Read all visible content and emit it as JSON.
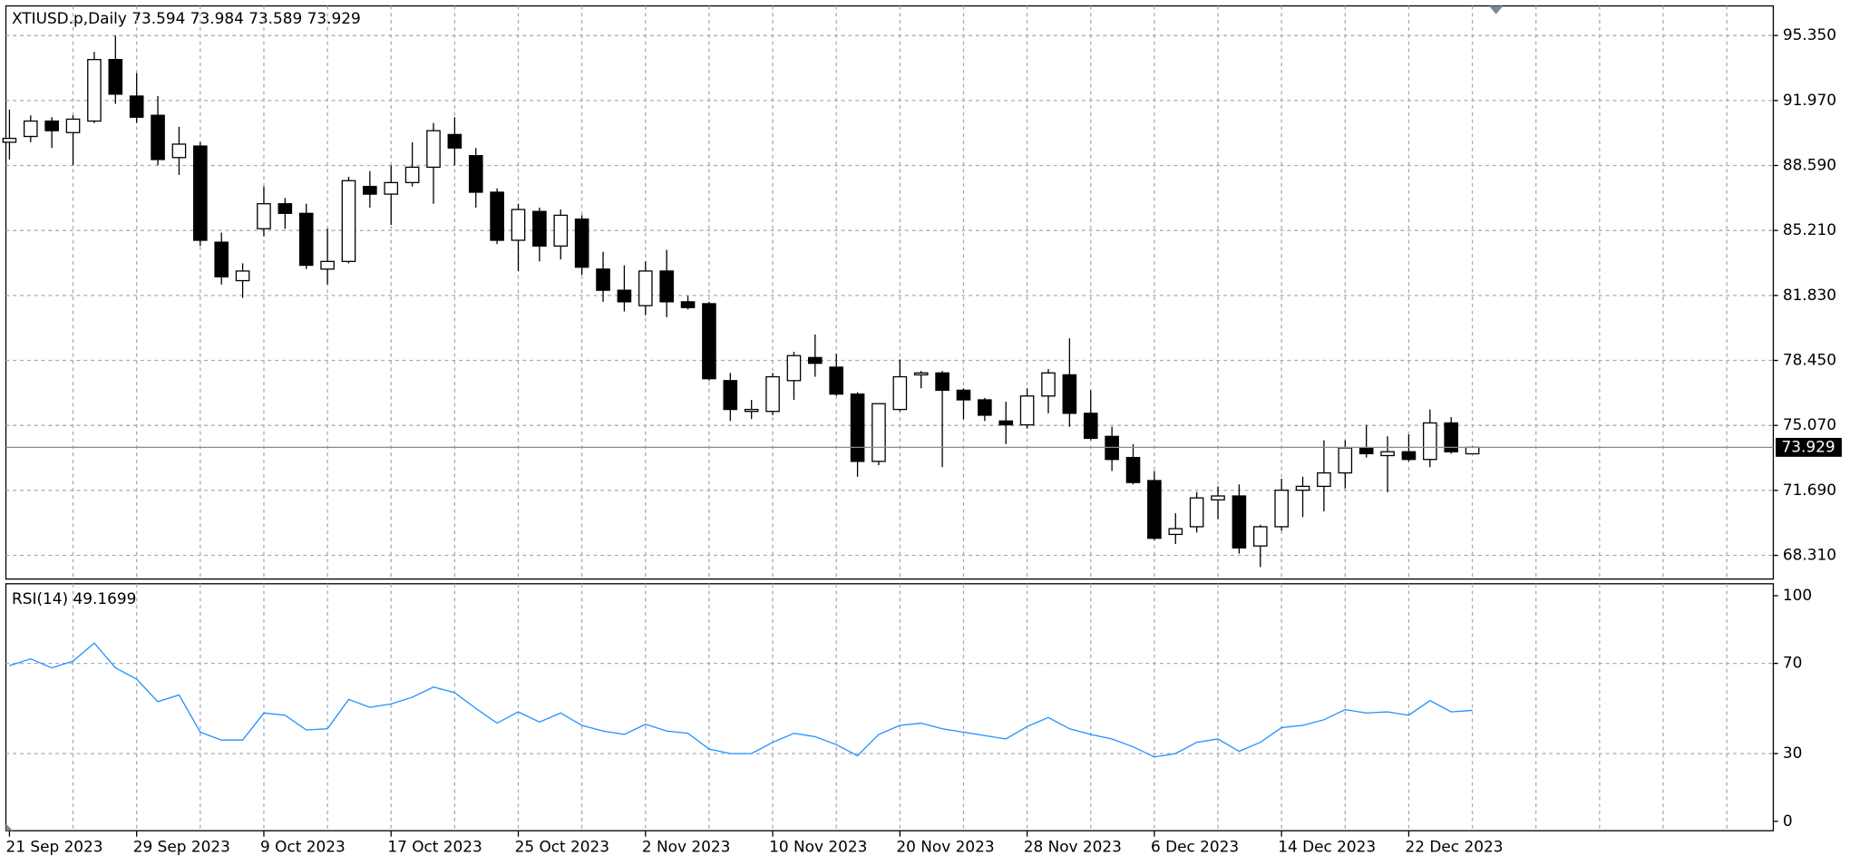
{
  "chart_data": [
    {
      "type": "candlestick",
      "title": "XTIUSD.p,Daily  73.594 73.984 73.589 73.929",
      "categories": [
        "21 Sep 2023",
        null,
        null,
        null,
        null,
        null,
        "29 Sep 2023",
        null,
        null,
        null,
        null,
        null,
        "9 Oct 2023",
        null,
        null,
        null,
        null,
        null,
        "17 Oct 2023",
        null,
        null,
        null,
        null,
        null,
        "25 Oct 2023",
        null,
        null,
        null,
        null,
        null,
        "2 Nov 2023",
        null,
        null,
        null,
        null,
        null,
        "10 Nov 2023",
        null,
        null,
        null,
        null,
        null,
        "20 Nov 2023",
        null,
        null,
        null,
        null,
        null,
        "28 Nov 2023",
        null,
        null,
        null,
        null,
        null,
        "6 Dec 2023",
        null,
        null,
        null,
        null,
        null,
        "14 Dec 2023",
        null,
        null,
        null,
        null,
        null,
        "22 Dec 2023",
        null,
        null,
        null
      ],
      "open": [
        89.8,
        90.1,
        90.9,
        90.3,
        90.9,
        94.1,
        92.2,
        91.2,
        89.0,
        89.6,
        84.6,
        82.6,
        85.3,
        86.6,
        86.1,
        83.2,
        83.6,
        87.5,
        87.1,
        87.7,
        88.5,
        90.2,
        89.1,
        87.2,
        84.7,
        86.2,
        84.4,
        85.8,
        83.2,
        82.1,
        81.3,
        83.1,
        81.5,
        81.4,
        77.4,
        75.8,
        75.8,
        77.4,
        78.6,
        78.1,
        76.7,
        73.2,
        75.9,
        77.7,
        77.8,
        76.9,
        76.4,
        75.3,
        75.1,
        76.6,
        77.7,
        75.7,
        74.5,
        73.4,
        72.2,
        69.4,
        69.8,
        71.2,
        71.4,
        68.8,
        69.8,
        71.7,
        71.9,
        72.6,
        73.9,
        73.5,
        73.7,
        73.3,
        75.2,
        73.594
      ],
      "high": [
        91.5,
        91.2,
        91.1,
        91.2,
        94.5,
        95.35,
        93.4,
        92.2,
        90.6,
        89.8,
        85.1,
        83.5,
        87.5,
        86.9,
        86.6,
        85.3,
        88.0,
        88.3,
        88.6,
        89.8,
        90.8,
        91.1,
        89.5,
        87.4,
        86.6,
        86.4,
        86.3,
        86.0,
        84.1,
        83.4,
        83.6,
        84.2,
        81.8,
        81.5,
        77.8,
        76.4,
        77.8,
        78.9,
        79.8,
        78.8,
        76.8,
        76.2,
        78.5,
        77.9,
        77.9,
        77.0,
        76.5,
        76.3,
        77.0,
        78.0,
        79.6,
        76.9,
        75.0,
        74.1,
        72.7,
        70.5,
        71.6,
        71.9,
        72.0,
        69.9,
        72.3,
        72.4,
        74.3,
        74.3,
        75.1,
        74.5,
        74.6,
        75.9,
        75.5,
        73.984
      ],
      "low": [
        88.9,
        89.8,
        89.5,
        88.6,
        90.8,
        91.8,
        90.8,
        88.6,
        88.1,
        84.4,
        82.4,
        81.7,
        84.9,
        85.3,
        83.2,
        82.4,
        83.5,
        86.4,
        85.5,
        87.5,
        86.6,
        88.6,
        86.4,
        84.5,
        83.1,
        83.6,
        83.7,
        82.9,
        81.5,
        81.0,
        80.8,
        80.7,
        81.1,
        77.4,
        75.3,
        75.4,
        75.6,
        76.4,
        77.6,
        76.6,
        72.4,
        73.0,
        75.8,
        77.0,
        72.9,
        75.4,
        75.3,
        74.1,
        74.9,
        75.7,
        75.0,
        74.3,
        72.7,
        72.0,
        69.1,
        68.9,
        69.5,
        70.2,
        68.4,
        67.7,
        69.6,
        70.3,
        70.6,
        71.8,
        73.4,
        71.6,
        73.2,
        72.9,
        73.6,
        73.589
      ],
      "close": [
        90.0,
        90.9,
        90.4,
        91.0,
        94.1,
        92.3,
        91.1,
        88.9,
        89.7,
        84.7,
        82.8,
        83.1,
        86.6,
        86.1,
        83.4,
        83.6,
        87.8,
        87.1,
        87.7,
        88.5,
        90.4,
        89.5,
        87.2,
        84.7,
        86.3,
        84.4,
        86.0,
        83.3,
        82.1,
        81.5,
        83.1,
        81.5,
        81.2,
        77.5,
        75.9,
        75.9,
        77.6,
        78.7,
        78.3,
        76.7,
        73.2,
        76.2,
        77.6,
        77.8,
        76.9,
        76.4,
        75.6,
        75.1,
        76.6,
        77.8,
        75.7,
        74.4,
        73.3,
        72.1,
        69.2,
        69.7,
        71.3,
        71.4,
        68.7,
        69.8,
        71.7,
        71.9,
        72.6,
        73.9,
        73.6,
        73.7,
        73.3,
        75.2,
        73.7,
        73.929
      ],
      "up_color": "#ffffff",
      "down_color": "#000000",
      "wick_color": "#000000",
      "ylim": [
        67.08,
        96.89
      ],
      "yticks": [
        {
          "value": 95.35,
          "label": "95.350"
        },
        {
          "value": 91.97,
          "label": "91.970"
        },
        {
          "value": 88.59,
          "label": "88.590"
        },
        {
          "value": 85.21,
          "label": "85.210"
        },
        {
          "value": 81.83,
          "label": "81.830"
        },
        {
          "value": 78.45,
          "label": "78.450"
        },
        {
          "value": 75.07,
          "label": "75.070"
        },
        {
          "value": 71.69,
          "label": "71.690"
        },
        {
          "value": 68.31,
          "label": "68.310"
        }
      ],
      "grid": true
    },
    {
      "type": "line",
      "title": "RSI(14) 49.1699",
      "color": "#1e90ff",
      "values": [
        69,
        72,
        68,
        71,
        79,
        68,
        63,
        53,
        56,
        39.5,
        36,
        36,
        48,
        47,
        40.5,
        41,
        54,
        50.5,
        52,
        55,
        59.5,
        57,
        50,
        43.5,
        48.5,
        44,
        48,
        42.5,
        40,
        38.5,
        43,
        40,
        39,
        32,
        30,
        30,
        35,
        39,
        37.5,
        34,
        29,
        38.5,
        42.5,
        43.5,
        41,
        39.5,
        38,
        36.5,
        42,
        46,
        41,
        38.5,
        36.5,
        33,
        28.5,
        30,
        35,
        36.5,
        31,
        35,
        41.5,
        42.5,
        45,
        49.5,
        48,
        48.5,
        47,
        53.5,
        48.5,
        49.1699
      ],
      "ylim": [
        -4.2,
        105.3
      ],
      "yticks": [
        100,
        70,
        30,
        0
      ],
      "grid": true
    }
  ]
}
